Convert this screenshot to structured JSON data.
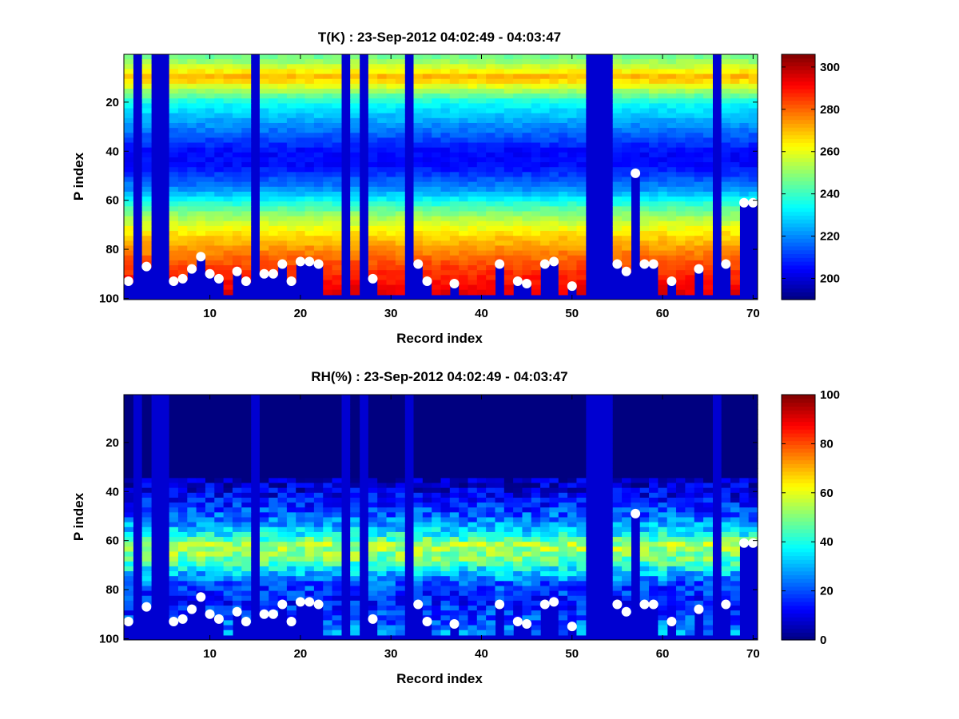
{
  "chart_data": [
    {
      "type": "heatmap",
      "title": "T(K) : 23-Sep-2012 04:02:49 - 04:03:47",
      "xlabel": "Record index",
      "ylabel": "P index",
      "xlim": [
        0.5,
        70.5
      ],
      "ylim": [
        0.5,
        100.5
      ],
      "y_reversed": true,
      "x_ticks": [
        10,
        20,
        30,
        40,
        50,
        60,
        70
      ],
      "y_ticks": [
        20,
        40,
        60,
        80,
        100
      ],
      "colormap": "jet",
      "clim": [
        190,
        306
      ],
      "colorbar_ticks": [
        200,
        220,
        240,
        260,
        280,
        300
      ],
      "value_profile": {
        "p_index": [
          1,
          5,
          10,
          20,
          30,
          40,
          46,
          55,
          65,
          75,
          85,
          95,
          100
        ],
        "value": [
          245,
          255,
          272,
          235,
          220,
          205,
          205,
          220,
          248,
          268,
          282,
          292,
          295
        ]
      },
      "missing_records": [
        2,
        4,
        5,
        15,
        25,
        27,
        32,
        52,
        53,
        54,
        66
      ],
      "record_cutoff_p": {
        "1": 93,
        "3": 87,
        "6": 93,
        "7": 92,
        "8": 88,
        "9": 83,
        "10": 90,
        "11": 92,
        "13": 89,
        "14": 93,
        "16": 90,
        "17": 90,
        "18": 86,
        "19": 93,
        "20": 85,
        "21": 85,
        "22": 86,
        "28": 92,
        "33": 86,
        "34": 93,
        "37": 94,
        "42": 86,
        "44": 93,
        "45": 94,
        "47": 86,
        "48": 85,
        "50": 95,
        "55": 86,
        "56": 89,
        "57": 49,
        "58": 86,
        "59": 86,
        "61": 93,
        "64": 88,
        "67": 86,
        "69": 61,
        "70": 61
      },
      "markers": [
        {
          "x": 1,
          "y": 93
        },
        {
          "x": 3,
          "y": 87
        },
        {
          "x": 6,
          "y": 93
        },
        {
          "x": 7,
          "y": 92
        },
        {
          "x": 8,
          "y": 88
        },
        {
          "x": 9,
          "y": 83
        },
        {
          "x": 10,
          "y": 90
        },
        {
          "x": 11,
          "y": 92
        },
        {
          "x": 13,
          "y": 89
        },
        {
          "x": 14,
          "y": 93
        },
        {
          "x": 16,
          "y": 90
        },
        {
          "x": 17,
          "y": 90
        },
        {
          "x": 18,
          "y": 86
        },
        {
          "x": 19,
          "y": 93
        },
        {
          "x": 20,
          "y": 85
        },
        {
          "x": 21,
          "y": 85
        },
        {
          "x": 22,
          "y": 86
        },
        {
          "x": 28,
          "y": 92
        },
        {
          "x": 33,
          "y": 86
        },
        {
          "x": 34,
          "y": 93
        },
        {
          "x": 37,
          "y": 94
        },
        {
          "x": 42,
          "y": 86
        },
        {
          "x": 44,
          "y": 93
        },
        {
          "x": 45,
          "y": 94
        },
        {
          "x": 47,
          "y": 86
        },
        {
          "x": 48,
          "y": 85
        },
        {
          "x": 50,
          "y": 95
        },
        {
          "x": 55,
          "y": 86
        },
        {
          "x": 56,
          "y": 89
        },
        {
          "x": 57,
          "y": 49
        },
        {
          "x": 58,
          "y": 86
        },
        {
          "x": 59,
          "y": 86
        },
        {
          "x": 61,
          "y": 93
        },
        {
          "x": 64,
          "y": 88
        },
        {
          "x": 67,
          "y": 86
        },
        {
          "x": 69,
          "y": 61
        },
        {
          "x": 70,
          "y": 61
        }
      ]
    },
    {
      "type": "heatmap",
      "title": "RH(%) : 23-Sep-2012 04:02:49 - 04:03:47",
      "xlabel": "Record index",
      "ylabel": "P index",
      "xlim": [
        0.5,
        70.5
      ],
      "ylim": [
        0.5,
        100.5
      ],
      "y_reversed": true,
      "x_ticks": [
        10,
        20,
        30,
        40,
        50,
        60,
        70
      ],
      "y_ticks": [
        20,
        40,
        60,
        80,
        100
      ],
      "colormap": "jet",
      "clim": [
        0,
        100
      ],
      "colorbar_ticks": [
        0,
        20,
        40,
        60,
        80,
        100
      ],
      "value_profile": {
        "p_index": [
          1,
          30,
          38,
          45,
          52,
          58,
          62,
          67,
          72,
          78,
          85,
          92,
          100
        ],
        "value": [
          0,
          0,
          8,
          15,
          25,
          40,
          55,
          50,
          35,
          20,
          15,
          20,
          30
        ]
      },
      "missing_records": [
        2,
        4,
        5,
        15,
        25,
        27,
        32,
        52,
        53,
        54,
        66
      ],
      "record_cutoff_p": {
        "1": 93,
        "3": 87,
        "6": 93,
        "7": 92,
        "8": 88,
        "9": 83,
        "10": 90,
        "11": 92,
        "13": 89,
        "14": 93,
        "16": 90,
        "17": 90,
        "18": 86,
        "19": 93,
        "20": 85,
        "21": 85,
        "22": 86,
        "28": 92,
        "33": 86,
        "34": 93,
        "37": 94,
        "42": 86,
        "44": 93,
        "45": 94,
        "47": 86,
        "48": 85,
        "50": 95,
        "55": 86,
        "56": 89,
        "57": 49,
        "58": 86,
        "59": 86,
        "61": 93,
        "64": 88,
        "67": 86,
        "69": 61,
        "70": 61
      },
      "markers": [
        {
          "x": 1,
          "y": 93
        },
        {
          "x": 3,
          "y": 87
        },
        {
          "x": 6,
          "y": 93
        },
        {
          "x": 7,
          "y": 92
        },
        {
          "x": 8,
          "y": 88
        },
        {
          "x": 9,
          "y": 83
        },
        {
          "x": 10,
          "y": 90
        },
        {
          "x": 11,
          "y": 92
        },
        {
          "x": 13,
          "y": 89
        },
        {
          "x": 14,
          "y": 93
        },
        {
          "x": 16,
          "y": 90
        },
        {
          "x": 17,
          "y": 90
        },
        {
          "x": 18,
          "y": 86
        },
        {
          "x": 19,
          "y": 93
        },
        {
          "x": 20,
          "y": 85
        },
        {
          "x": 21,
          "y": 85
        },
        {
          "x": 22,
          "y": 86
        },
        {
          "x": 28,
          "y": 92
        },
        {
          "x": 33,
          "y": 86
        },
        {
          "x": 34,
          "y": 93
        },
        {
          "x": 37,
          "y": 94
        },
        {
          "x": 42,
          "y": 86
        },
        {
          "x": 44,
          "y": 93
        },
        {
          "x": 45,
          "y": 94
        },
        {
          "x": 47,
          "y": 86
        },
        {
          "x": 48,
          "y": 85
        },
        {
          "x": 50,
          "y": 95
        },
        {
          "x": 55,
          "y": 86
        },
        {
          "x": 56,
          "y": 89
        },
        {
          "x": 57,
          "y": 49
        },
        {
          "x": 58,
          "y": 86
        },
        {
          "x": 59,
          "y": 86
        },
        {
          "x": 61,
          "y": 93
        },
        {
          "x": 64,
          "y": 88
        },
        {
          "x": 67,
          "y": 86
        },
        {
          "x": 69,
          "y": 61
        },
        {
          "x": 70,
          "y": 61
        }
      ]
    }
  ]
}
